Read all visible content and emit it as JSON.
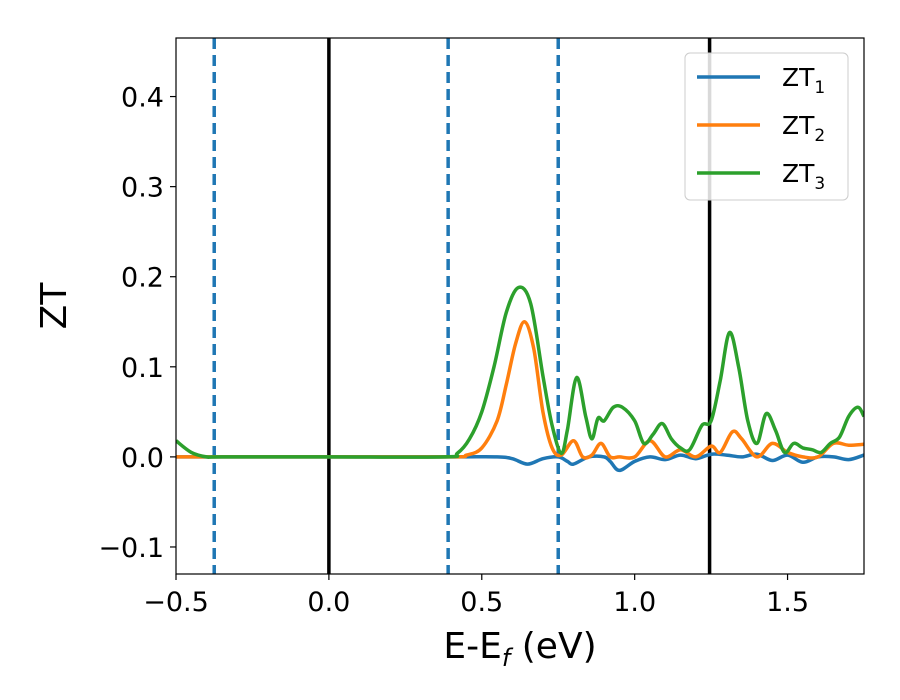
{
  "chart_data": {
    "type": "line",
    "xlabel": {
      "main": "E-E",
      "sub": "f",
      "suffix": " (eV)"
    },
    "ylabel": "ZT",
    "xlim": [
      -0.5,
      1.75
    ],
    "ylim": [
      -0.13,
      0.465
    ],
    "xticks": [
      -0.5,
      0.0,
      0.5,
      1.0,
      1.5
    ],
    "xtick_labels": [
      "−0.5",
      "0.0",
      "0.5",
      "1.0",
      "1.5"
    ],
    "yticks": [
      -0.1,
      0.0,
      0.1,
      0.2,
      0.3,
      0.4
    ],
    "ytick_labels": [
      "−0.1",
      "0.0",
      "0.1",
      "0.2",
      "0.3",
      "0.4"
    ],
    "grid": false,
    "legend_position": "top-right",
    "vlines_solid": [
      0.0,
      1.245
    ],
    "vlines_dashed": [
      -0.375,
      0.39,
      0.75
    ],
    "vline_solid_color": "#000000",
    "vline_dashed_color": "#1f77b4",
    "series": [
      {
        "name": "ZT",
        "sub": "1",
        "color": "#1f77b4",
        "x": [
          -0.5,
          0.0,
          0.4,
          0.55,
          0.6,
          0.65,
          0.7,
          0.75,
          0.78,
          0.8,
          0.85,
          0.9,
          0.92,
          0.95,
          1.0,
          1.05,
          1.1,
          1.15,
          1.2,
          1.25,
          1.3,
          1.35,
          1.4,
          1.45,
          1.5,
          1.55,
          1.6,
          1.65,
          1.7,
          1.75
        ],
        "y": [
          0.0,
          0.0,
          0.0,
          0.0,
          -0.002,
          -0.008,
          -0.002,
          0.0,
          -0.005,
          -0.008,
          0.0,
          0.0,
          -0.005,
          -0.015,
          -0.005,
          0.0,
          -0.003,
          0.002,
          -0.002,
          0.003,
          0.002,
          0.0,
          0.003,
          -0.004,
          0.002,
          -0.006,
          0.0,
          0.0,
          -0.003,
          0.002
        ]
      },
      {
        "name": "ZT",
        "sub": "2",
        "color": "#ff7f0e",
        "x": [
          -0.5,
          0.0,
          0.4,
          0.45,
          0.5,
          0.55,
          0.58,
          0.61,
          0.64,
          0.67,
          0.7,
          0.73,
          0.76,
          0.8,
          0.83,
          0.86,
          0.89,
          0.92,
          0.95,
          1.0,
          1.05,
          1.1,
          1.15,
          1.2,
          1.25,
          1.28,
          1.32,
          1.35,
          1.4,
          1.45,
          1.5,
          1.55,
          1.6,
          1.65,
          1.7,
          1.75
        ],
        "y": [
          0.0,
          0.0,
          0.0,
          0.002,
          0.01,
          0.04,
          0.08,
          0.125,
          0.15,
          0.12,
          0.05,
          0.01,
          0.002,
          0.018,
          0.0,
          0.002,
          0.015,
          0.0,
          0.0,
          0.0,
          0.018,
          0.0,
          0.008,
          0.0,
          0.012,
          0.005,
          0.028,
          0.02,
          0.0,
          0.015,
          0.005,
          0.0,
          0.0,
          0.015,
          0.013,
          0.014
        ]
      },
      {
        "name": "ZT",
        "sub": "3",
        "color": "#2ca02c",
        "x": [
          -0.5,
          -0.45,
          -0.4,
          -0.35,
          0.0,
          0.38,
          0.42,
          0.46,
          0.5,
          0.54,
          0.58,
          0.62,
          0.66,
          0.7,
          0.73,
          0.76,
          0.78,
          0.81,
          0.84,
          0.86,
          0.88,
          0.9,
          0.93,
          0.96,
          1.0,
          1.03,
          1.06,
          1.09,
          1.12,
          1.15,
          1.18,
          1.22,
          1.25,
          1.28,
          1.31,
          1.34,
          1.37,
          1.4,
          1.43,
          1.46,
          1.49,
          1.52,
          1.55,
          1.58,
          1.61,
          1.64,
          1.67,
          1.7,
          1.73,
          1.75
        ],
        "y": [
          0.018,
          0.005,
          0.0,
          0.0,
          0.0,
          0.0,
          0.004,
          0.02,
          0.05,
          0.1,
          0.16,
          0.188,
          0.17,
          0.09,
          0.035,
          0.004,
          0.03,
          0.088,
          0.045,
          0.02,
          0.043,
          0.04,
          0.055,
          0.055,
          0.04,
          0.015,
          0.025,
          0.037,
          0.02,
          0.01,
          0.008,
          0.035,
          0.04,
          0.085,
          0.138,
          0.1,
          0.04,
          0.015,
          0.048,
          0.03,
          0.005,
          0.015,
          0.01,
          0.008,
          0.005,
          0.015,
          0.022,
          0.045,
          0.055,
          0.045
        ]
      }
    ]
  }
}
